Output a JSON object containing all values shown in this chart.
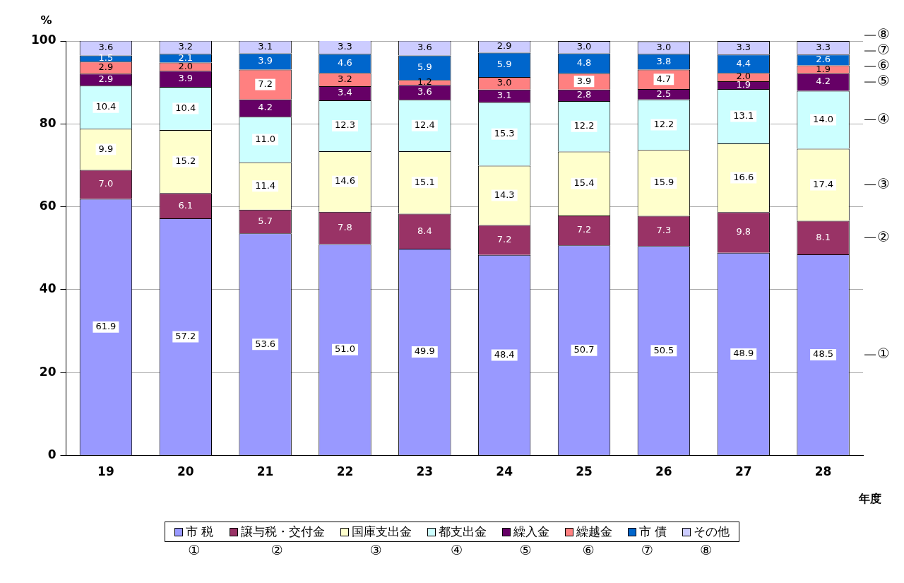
{
  "chart_data": {
    "type": "bar",
    "stacked": true,
    "ylabel": "%",
    "xlabel": "年度",
    "categories": [
      "19",
      "20",
      "21",
      "22",
      "23",
      "24",
      "25",
      "26",
      "27",
      "28"
    ],
    "ylim": [
      0,
      100
    ],
    "yticks": [
      0,
      20,
      40,
      60,
      80,
      100
    ],
    "grid": "y",
    "legend": "bottom",
    "series": [
      {
        "name": "市 税",
        "color": "#9999ff",
        "values": [
          61.9,
          57.2,
          53.6,
          51.0,
          49.9,
          48.4,
          50.7,
          50.5,
          48.9,
          48.5
        ],
        "value_labels": [
          "61.9",
          "57.2",
          "53.6",
          "51.0",
          "49.9",
          "48.4",
          "50.7",
          "50.5",
          "48.9",
          "48.5"
        ]
      },
      {
        "name": "譲与税・交付金",
        "color": "#993366",
        "values": [
          7.0,
          6.1,
          5.7,
          7.8,
          8.4,
          7.2,
          7.2,
          7.3,
          9.8,
          8.1
        ],
        "value_labels": [
          "7.0",
          "6.1",
          "5.7",
          "7.8",
          "8.4",
          "7.2",
          "7.2",
          "7.3",
          "9.8",
          "8.1"
        ]
      },
      {
        "name": "国庫支出金",
        "color": "#ffffcc",
        "values": [
          9.9,
          15.2,
          11.4,
          14.6,
          15.1,
          14.3,
          15.4,
          15.9,
          16.6,
          17.4
        ],
        "value_labels": [
          "9.9",
          "15.2",
          "11.4",
          "14.6",
          "15.1",
          "14.3",
          "15.4",
          "15.9",
          "16.6",
          "17.4"
        ]
      },
      {
        "name": "都支出金",
        "color": "#ccffff",
        "values": [
          10.4,
          10.4,
          11.0,
          12.3,
          12.4,
          15.3,
          12.2,
          12.2,
          13.1,
          14.0
        ],
        "value_labels": [
          "10.4",
          "10.4",
          "11.0",
          "12.3",
          "12.4",
          "15.3",
          "12.2",
          "12.2",
          "13.1",
          "14.0"
        ]
      },
      {
        "name": "繰入金",
        "color": "#660066",
        "values": [
          2.9,
          3.9,
          4.2,
          3.4,
          3.6,
          3.1,
          2.8,
          2.5,
          1.9,
          4.2
        ],
        "value_labels": [
          "2.9",
          "3.9",
          "4.2",
          "3.4",
          "3.6",
          "3.1",
          "2.8",
          "2.5",
          "1.9",
          "4.2"
        ]
      },
      {
        "name": "繰越金",
        "color": "#ff8080",
        "values": [
          2.9,
          2.0,
          7.2,
          3.2,
          1.2,
          3.0,
          3.9,
          4.7,
          2.0,
          1.9
        ],
        "value_labels": [
          "2.9",
          "2.0",
          "7.2",
          "3.2",
          "1.2",
          "3.0",
          "3.9",
          "4.7",
          "2.0",
          "1.9"
        ]
      },
      {
        "name": "市 債",
        "color": "#0066cc",
        "values": [
          1.5,
          2.1,
          3.9,
          4.6,
          5.9,
          5.9,
          4.8,
          3.8,
          4.4,
          2.6
        ],
        "value_labels": [
          "1.5",
          "2.1",
          "3.9",
          "4.6",
          "5.9",
          "5.9",
          "4.8",
          "3.8",
          "4.4",
          "2.6"
        ]
      },
      {
        "name": "その他",
        "color": "#ccccff",
        "values": [
          3.6,
          3.2,
          3.1,
          3.3,
          3.6,
          2.9,
          3.0,
          3.0,
          3.3,
          3.3
        ],
        "value_labels": [
          "3.6",
          "3.2",
          "3.1",
          "3.3",
          "3.6",
          "2.9",
          "3.0",
          "3.0",
          "3.3",
          "3.3"
        ]
      }
    ],
    "annotations": [
      "①",
      "②",
      "③",
      "④",
      "⑤",
      "⑥",
      "⑦",
      "⑧"
    ]
  }
}
